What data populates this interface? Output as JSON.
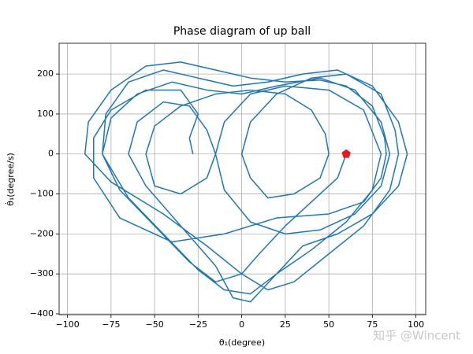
{
  "chart_data": {
    "type": "line",
    "title": "Phase diagram of up ball",
    "x_label": "θ₁(degree)",
    "y_label": "θ̇₁(degree/s)",
    "watermark": "知乎 @Wincent",
    "xlim": [
      -104.8,
      105.6
    ],
    "ylim": [
      -402,
      277
    ],
    "xticks": [
      {
        "value": -100,
        "label": "−100"
      },
      {
        "value": -75,
        "label": "−75"
      },
      {
        "value": -50,
        "label": "−50"
      },
      {
        "value": -25,
        "label": "−25"
      },
      0,
      25,
      50,
      75,
      100
    ],
    "yticks": [
      {
        "value": -400,
        "label": "−400"
      },
      {
        "value": -300,
        "label": "−300"
      },
      {
        "value": -200,
        "label": "−200"
      },
      {
        "value": -100,
        "label": "−100"
      },
      0,
      100,
      200
    ],
    "grid": true,
    "start_point": {
      "x": 60,
      "y": 0,
      "color": "#e31a1c"
    },
    "series": [
      {
        "color": "#1f77b4",
        "x": [
          60,
          55,
          40,
          25,
          10,
          0,
          -15,
          -30,
          -50,
          -70,
          -80,
          -75,
          -60,
          -40,
          -20,
          0,
          20,
          45,
          65,
          80,
          85,
          80,
          65,
          45,
          25,
          5,
          -10,
          -15,
          -10,
          5,
          25,
          50,
          70,
          80,
          75,
          60,
          40,
          20,
          5,
          -10,
          -25,
          -45,
          -65,
          -80,
          -78,
          -65,
          -45,
          -25,
          -5,
          15,
          35,
          55,
          75,
          90,
          95,
          90,
          75,
          55,
          35,
          20,
          5,
          -5,
          -15,
          -35,
          -55,
          -65,
          -60,
          -45,
          -30,
          -20,
          -15,
          -20,
          -35,
          -50,
          -55,
          -50,
          -35,
          -15,
          5,
          25,
          40,
          48,
          50,
          45,
          30,
          15,
          5,
          0,
          5,
          20,
          40,
          60,
          80,
          88,
          90,
          85,
          70,
          50,
          30,
          15,
          0,
          -20,
          -45,
          -75,
          -90,
          -88,
          -75,
          -55,
          -35,
          -15,
          5,
          25,
          45,
          60,
          75,
          82,
          83,
          80,
          70,
          50,
          20,
          -10,
          -40,
          -70,
          -85,
          -85,
          -75,
          -55,
          -35,
          -25,
          -30,
          -28
        ],
        "y": [
          0,
          -60,
          -120,
          -180,
          -250,
          -300,
          -320,
          -270,
          -180,
          -90,
          0,
          90,
          150,
          180,
          160,
          150,
          170,
          190,
          160,
          80,
          0,
          -80,
          -150,
          -190,
          -200,
          -170,
          -90,
          0,
          80,
          150,
          170,
          160,
          110,
          0,
          -90,
          -170,
          -240,
          -300,
          -350,
          -340,
          -290,
          -200,
          -110,
          0,
          100,
          180,
          210,
          190,
          170,
          180,
          200,
          210,
          170,
          80,
          0,
          -80,
          -150,
          -200,
          -230,
          -300,
          -370,
          -360,
          -280,
          -180,
          -80,
          0,
          80,
          130,
          120,
          60,
          0,
          -60,
          -100,
          -80,
          0,
          70,
          120,
          150,
          160,
          150,
          110,
          50,
          0,
          -60,
          -100,
          -110,
          -60,
          0,
          80,
          150,
          190,
          200,
          150,
          60,
          0,
          -90,
          -180,
          -250,
          -320,
          -340,
          -300,
          -230,
          -150,
          -70,
          0,
          80,
          160,
          220,
          230,
          210,
          190,
          180,
          185,
          170,
          120,
          40,
          0,
          -60,
          -120,
          -150,
          -160,
          -200,
          -220,
          -160,
          -60,
          40,
          110,
          160,
          160,
          100,
          40,
          0
        ]
      }
    ]
  }
}
